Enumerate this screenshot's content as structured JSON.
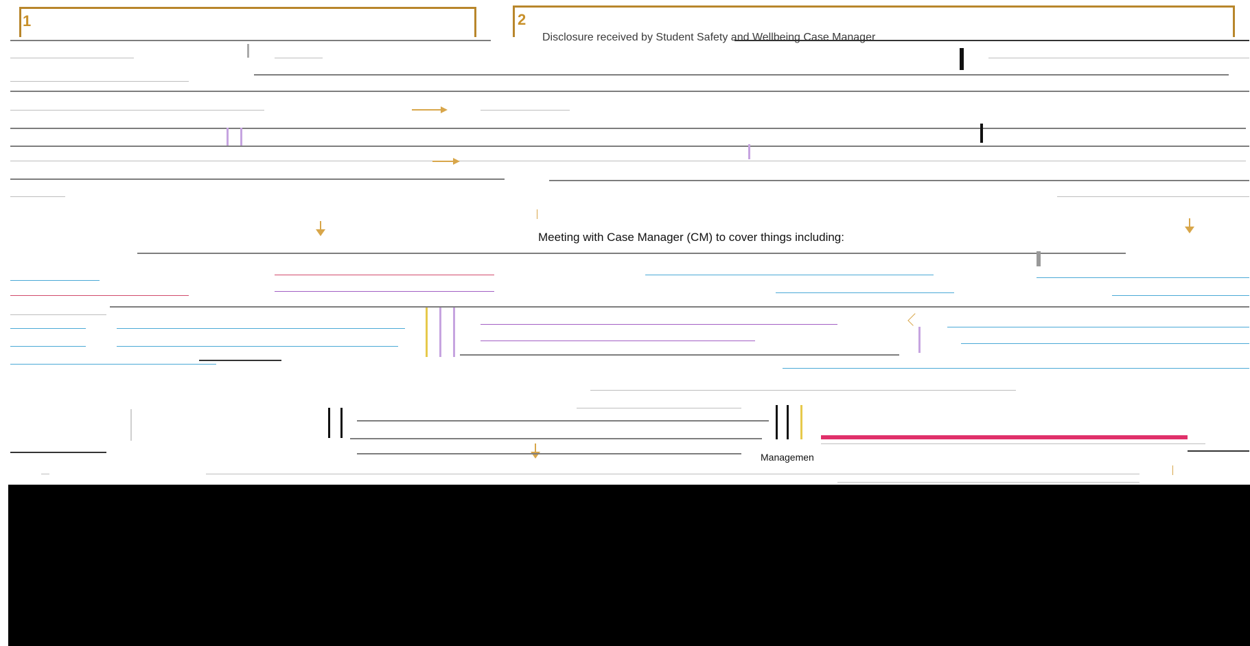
{
  "steps": [
    {
      "number": "1"
    },
    {
      "number": "2"
    }
  ],
  "step2_heading": "Disclosure received by Student Safety and Wellbeing Case Manager",
  "meeting_heading": "Meeting with Case Manager (CM) to cover things including:",
  "management_label": "Managemen",
  "colors": {
    "step_border": "#b8862b",
    "arrow": "#d8a64a",
    "accent_pink": "#e0306a",
    "footer": "#000000"
  }
}
